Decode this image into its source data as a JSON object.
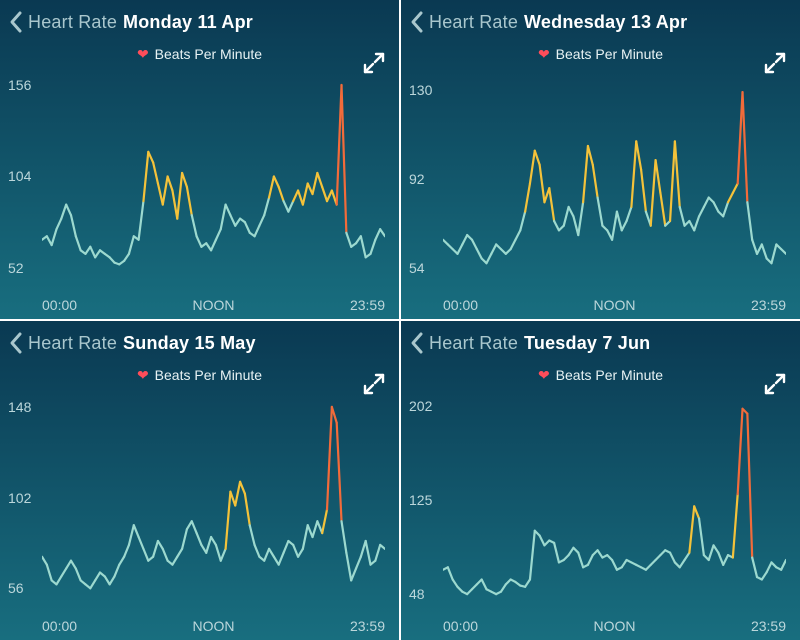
{
  "common": {
    "back_label": "Heart Rate",
    "legend": "Beats Per Minute",
    "x_start": "00:00",
    "x_mid": "NOON",
    "x_end": "23:59",
    "colors": {
      "line_base": "#9cd9cf",
      "line_mid": "#f4c23a",
      "line_high": "#f26b3a",
      "heart": "#ff4d5a",
      "text_muted": "#bcd7db",
      "text_white": "#ffffff"
    },
    "font": {
      "header_size": 18,
      "body_size": 14
    }
  },
  "panels": [
    {
      "id": "p0",
      "date": "Monday 11 Apr",
      "y_ticks": [
        52,
        104,
        156
      ],
      "y_min": 40,
      "y_max": 160,
      "data": [
        68,
        70,
        65,
        74,
        80,
        88,
        82,
        70,
        62,
        60,
        64,
        58,
        62,
        60,
        58,
        55,
        54,
        56,
        60,
        70,
        68,
        90,
        118,
        112,
        100,
        88,
        104,
        96,
        80,
        106,
        98,
        82,
        70,
        64,
        66,
        62,
        68,
        74,
        88,
        82,
        76,
        80,
        78,
        72,
        70,
        76,
        82,
        92,
        104,
        98,
        90,
        84,
        90,
        96,
        88,
        100,
        94,
        106,
        98,
        90,
        96,
        88,
        156,
        72,
        64,
        66,
        70,
        58,
        60,
        68,
        74,
        70
      ]
    },
    {
      "id": "p1",
      "date": "Wednesday 13 Apr",
      "y_ticks": [
        54,
        92,
        130
      ],
      "y_min": 45,
      "y_max": 135,
      "data": [
        66,
        64,
        62,
        60,
        64,
        68,
        66,
        62,
        58,
        56,
        60,
        64,
        62,
        60,
        62,
        66,
        70,
        78,
        90,
        104,
        98,
        82,
        88,
        74,
        70,
        72,
        80,
        76,
        68,
        82,
        106,
        98,
        84,
        72,
        70,
        66,
        78,
        70,
        74,
        80,
        108,
        96,
        78,
        72,
        100,
        86,
        72,
        74,
        108,
        80,
        72,
        74,
        70,
        76,
        80,
        84,
        82,
        78,
        76,
        82,
        86,
        90,
        129,
        82,
        66,
        60,
        64,
        58,
        56,
        64,
        62,
        60
      ]
    },
    {
      "id": "p2",
      "date": "Sunday 15 May",
      "y_ticks": [
        56,
        102,
        148
      ],
      "y_min": 45,
      "y_max": 152,
      "data": [
        72,
        68,
        60,
        58,
        62,
        66,
        70,
        66,
        60,
        58,
        56,
        60,
        64,
        62,
        58,
        62,
        68,
        72,
        78,
        88,
        82,
        76,
        70,
        72,
        80,
        76,
        70,
        68,
        72,
        76,
        86,
        90,
        84,
        78,
        74,
        82,
        78,
        70,
        76,
        105,
        98,
        110,
        104,
        88,
        78,
        72,
        70,
        76,
        72,
        68,
        74,
        80,
        78,
        72,
        76,
        88,
        82,
        90,
        84,
        96,
        148,
        140,
        90,
        74,
        60,
        66,
        72,
        80,
        68,
        70,
        78,
        76
      ]
    },
    {
      "id": "p3",
      "date": "Tuesday 7 Jun",
      "y_ticks": [
        48,
        125,
        202
      ],
      "y_min": 35,
      "y_max": 208,
      "data": [
        68,
        70,
        60,
        54,
        50,
        48,
        52,
        56,
        60,
        52,
        50,
        48,
        50,
        56,
        60,
        58,
        55,
        54,
        60,
        100,
        96,
        88,
        92,
        90,
        74,
        76,
        80,
        86,
        82,
        70,
        72,
        80,
        84,
        78,
        80,
        76,
        68,
        70,
        76,
        74,
        72,
        70,
        68,
        72,
        76,
        80,
        84,
        82,
        74,
        70,
        76,
        82,
        120,
        110,
        80,
        76,
        88,
        82,
        72,
        80,
        78,
        130,
        200,
        196,
        78,
        62,
        60,
        66,
        74,
        70,
        68,
        76
      ]
    }
  ]
}
